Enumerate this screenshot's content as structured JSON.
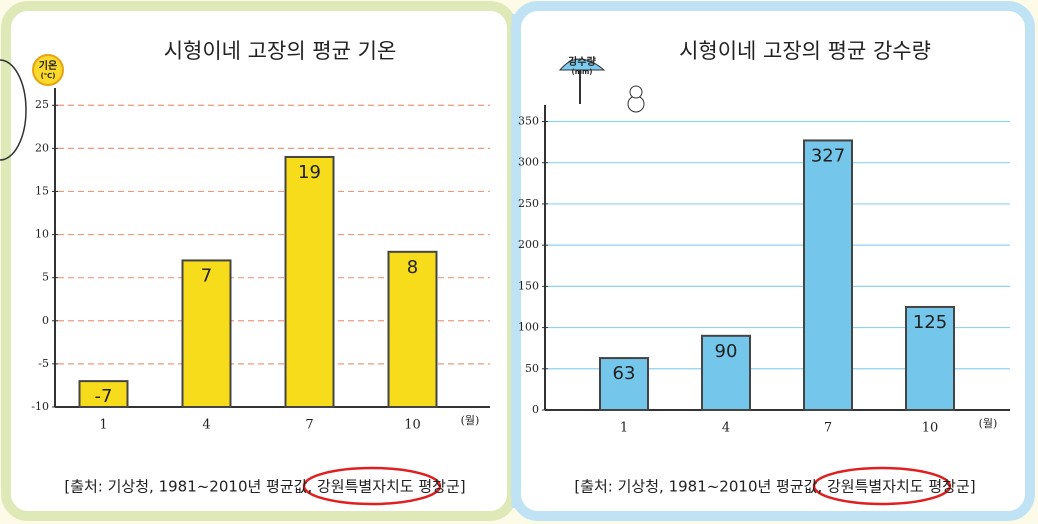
{
  "chart_data": [
    {
      "type": "bar",
      "title": "시형이네 고장의 평균 기온",
      "icon_label": "기온",
      "icon_unit": "(℃)",
      "categories": [
        "1",
        "4",
        "7",
        "10"
      ],
      "x_unit": "(월)",
      "values": [
        -7,
        7,
        19,
        8
      ],
      "color": "#f7dc1c",
      "ylim": [
        -10,
        27
      ],
      "yticks": [
        -10,
        -5,
        0,
        5,
        10,
        15,
        20,
        25
      ],
      "grid": true,
      "source": "[출처: 기상청, 1981~2010년 평균값, 강원특별자치도 평창군]"
    },
    {
      "type": "bar",
      "title": "시형이네 고장의 평균 강수량",
      "icon_label": "강수량",
      "icon_unit": "(mm)",
      "categories": [
        "1",
        "4",
        "7",
        "10"
      ],
      "x_unit": "(월)",
      "values": [
        63,
        90,
        327,
        125
      ],
      "color": "#74c6ea",
      "ylim": [
        0,
        370
      ],
      "yticks": [
        0,
        50,
        100,
        150,
        200,
        250,
        300,
        350
      ],
      "grid": true,
      "source": "[출처: 기상청, 1981~2010년 평균값, 강원특별자치도 평창군]"
    }
  ]
}
